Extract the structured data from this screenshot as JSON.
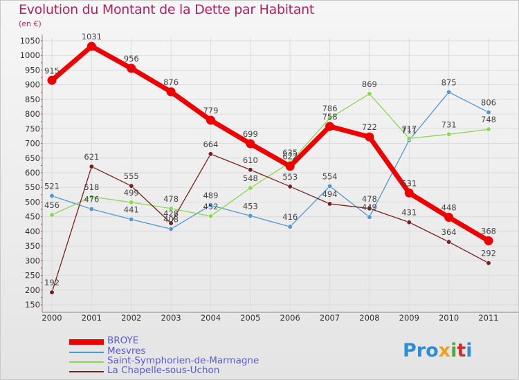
{
  "title": "Evolution du Montant de la Dette par Habitant",
  "unit": "(en €)",
  "brand": "Proxiti",
  "chart_data": {
    "type": "line",
    "title": "Evolution du Montant de la Dette par Habitant",
    "ylabel": "(en €)",
    "x": [
      2000,
      2001,
      2002,
      2003,
      2004,
      2005,
      2006,
      2007,
      2008,
      2009,
      2010,
      2011
    ],
    "ylim": [
      150,
      1050
    ],
    "yticks": [
      150,
      200,
      250,
      300,
      350,
      400,
      450,
      500,
      550,
      600,
      650,
      700,
      750,
      800,
      850,
      900,
      950,
      1000,
      1050
    ],
    "grid": true,
    "legend_position": "bottom-left",
    "series": [
      {
        "name": "BROYE",
        "color": "#ee0000",
        "values": [
          915,
          1031,
          956,
          876,
          779,
          699,
          622,
          758,
          722,
          531,
          448,
          368
        ]
      },
      {
        "name": "Mesvres",
        "color": "#4f97cf",
        "values": [
          521,
          476,
          441,
          408,
          489,
          453,
          416,
          554,
          449,
          711,
          875,
          806
        ]
      },
      {
        "name": "Saint-Symphorien-de-Marmagne",
        "color": "#88d94f",
        "values": [
          456,
          518,
          499,
          478,
          452,
          548,
          635,
          786,
          869,
          717,
          731,
          748
        ]
      },
      {
        "name": "La Chapelle-sous-Uchon",
        "color": "#7a1f1f",
        "values": [
          192,
          621,
          555,
          428,
          664,
          610,
          553,
          494,
          478,
          431,
          364,
          292
        ]
      }
    ]
  }
}
